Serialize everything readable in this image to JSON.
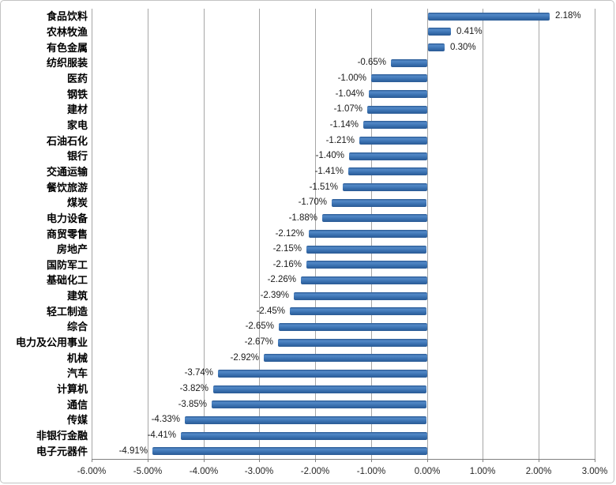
{
  "chart_data": {
    "type": "bar",
    "orientation": "horizontal",
    "title": "",
    "xlabel": "",
    "ylabel": "",
    "xlim": [
      -6.0,
      3.0
    ],
    "grid": true,
    "legend": false,
    "categories": [
      "食品饮料",
      "农林牧渔",
      "有色金属",
      "纺织服装",
      "医药",
      "钢铁",
      "建材",
      "家电",
      "石油石化",
      "银行",
      "交通运输",
      "餐饮旅游",
      "煤炭",
      "电力设备",
      "商贸零售",
      "房地产",
      "国防军工",
      "基础化工",
      "建筑",
      "轻工制造",
      "综合",
      "电力及公用事业",
      "机械",
      "汽车",
      "计算机",
      "通信",
      "传媒",
      "非银行金融",
      "电子元器件"
    ],
    "values": [
      2.18,
      0.41,
      0.3,
      -0.65,
      -1.0,
      -1.04,
      -1.07,
      -1.14,
      -1.21,
      -1.4,
      -1.41,
      -1.51,
      -1.7,
      -1.88,
      -2.12,
      -2.15,
      -2.16,
      -2.26,
      -2.39,
      -2.45,
      -2.65,
      -2.67,
      -2.92,
      -3.74,
      -3.82,
      -3.85,
      -4.33,
      -4.41,
      -4.91
    ],
    "value_labels": [
      "2.18%",
      "0.41%",
      "0.30%",
      "-0.65%",
      "-1.00%",
      "-1.04%",
      "-1.07%",
      "-1.14%",
      "-1.21%",
      "-1.40%",
      "-1.41%",
      "-1.51%",
      "-1.70%",
      "-1.88%",
      "-2.12%",
      "-2.15%",
      "-2.16%",
      "-2.26%",
      "-2.39%",
      "-2.45%",
      "-2.65%",
      "-2.67%",
      "-2.92%",
      "-3.74%",
      "-3.82%",
      "-3.85%",
      "-4.33%",
      "-4.41%",
      "-4.91%"
    ],
    "x_ticks": [
      -6,
      -5,
      -4,
      -3,
      -2,
      -1,
      0,
      1,
      2,
      3
    ],
    "x_tick_labels": [
      "-6.00%",
      "-5.00%",
      "-4.00%",
      "-3.00%",
      "-2.00%",
      "-1.00%",
      "0.00%",
      "1.00%",
      "2.00%",
      "3.00%"
    ],
    "colors": {
      "bar_dark": "#2a5a94",
      "bar_light": "#5389c7",
      "bar_mid": "#3b72b2",
      "gridline": "#a6a6a6",
      "axis_line": "#808080",
      "label_text": "#1a1a1a"
    }
  }
}
